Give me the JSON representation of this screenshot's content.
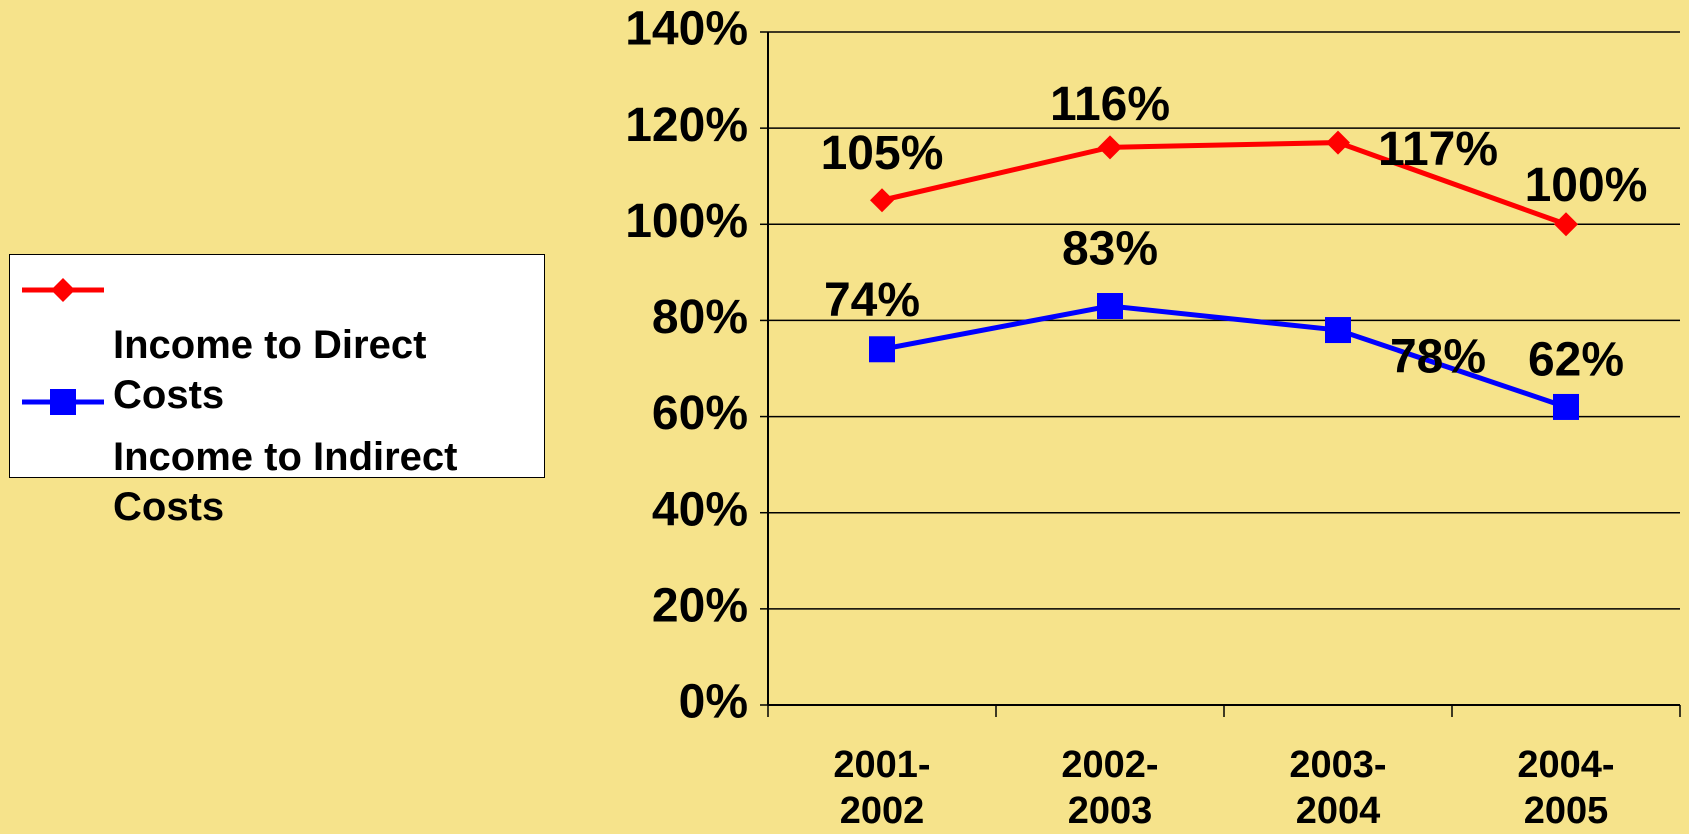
{
  "chart_data": {
    "type": "line",
    "categories": [
      "2001-2002",
      "2002-2003",
      "2003-2004",
      "2004-2005"
    ],
    "series": [
      {
        "name": "Income to Direct Costs",
        "color": "#ff0000",
        "marker": "diamond",
        "values": [
          105,
          116,
          117,
          100
        ],
        "value_labels": [
          "105%",
          "116%",
          "117%",
          "100%"
        ]
      },
      {
        "name": "Income to Indirect Costs",
        "color": "#0000ff",
        "marker": "square",
        "values": [
          74,
          83,
          78,
          62
        ],
        "value_labels": [
          "74%",
          "83%",
          "78%",
          "62%"
        ]
      }
    ],
    "ylim": [
      0,
      140
    ],
    "yticks": [
      {
        "value": 0,
        "label": "0%"
      },
      {
        "value": 20,
        "label": "20%"
      },
      {
        "value": 40,
        "label": "40%"
      },
      {
        "value": 60,
        "label": "60%"
      },
      {
        "value": 80,
        "label": "80%"
      },
      {
        "value": 100,
        "label": "100%"
      },
      {
        "value": 120,
        "label": "120%"
      },
      {
        "value": 140,
        "label": "140%"
      }
    ],
    "grid": true,
    "legend": "left"
  }
}
